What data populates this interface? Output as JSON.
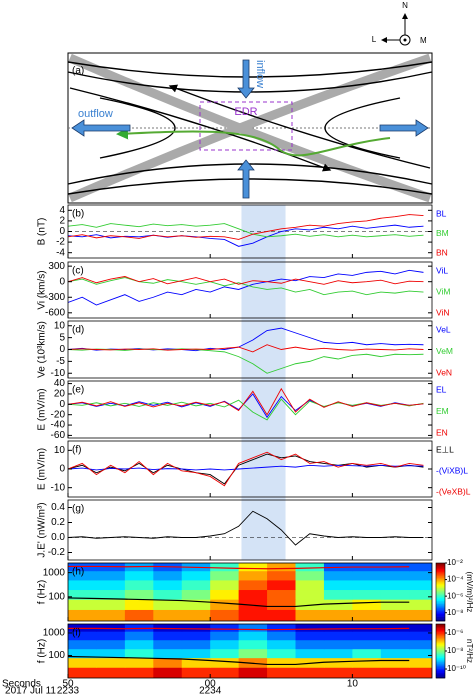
{
  "diagram": {
    "label": "(a)",
    "inflow": "inflow",
    "outflow": "outflow",
    "edr": "EDR",
    "compass": {
      "n": "N",
      "l": "L",
      "m": "M"
    }
  },
  "time_axis": {
    "label": "Seconds",
    "date": "2017 Jul 11",
    "xlim": [
      50,
      75.6
    ],
    "xticks": [
      50,
      {
        "value": 60,
        "label": "00"
      },
      {
        "value": 70,
        "label": "10"
      }
    ],
    "xticks_row2": [
      {
        "value": 50,
        "label": "2233"
      },
      {
        "value": 60,
        "label": "2234"
      }
    ],
    "highlight": [
      62.2,
      65.3
    ]
  },
  "chart_data": [
    {
      "type": "line",
      "panel": "(b)",
      "ylabel": "B (nT)",
      "zero_line": true,
      "x": [
        50,
        51,
        52,
        53,
        54,
        55,
        56,
        57,
        58,
        59,
        60,
        61,
        62,
        63,
        64,
        65,
        66,
        67,
        68,
        69,
        70,
        71,
        72,
        73,
        74,
        75
      ],
      "ylim": [
        -5,
        5
      ],
      "yticks": [
        4,
        2,
        0,
        -2,
        -4
      ],
      "series": [
        {
          "name": "BL",
          "color": "#0000ff",
          "values": [
            -0.8,
            -1,
            -0.6,
            -1.2,
            -0.9,
            -1,
            -0.7,
            -1.1,
            -0.8,
            -1,
            -1.3,
            -1.5,
            -2.8,
            -2.2,
            -1,
            0,
            0.5,
            0.3,
            0.8,
            0.5,
            1,
            0.6,
            0.9,
            1.2,
            0.8,
            1
          ]
        },
        {
          "name": "BM",
          "color": "#33cc33",
          "values": [
            1,
            1.3,
            0.8,
            1.5,
            1.2,
            0.9,
            1.4,
            1.1,
            1.3,
            1,
            1.2,
            1.5,
            0.5,
            -0.5,
            -1,
            -0.8,
            -0.5,
            -0.9,
            -0.6,
            -1,
            -0.7,
            -1,
            -0.8,
            -0.6,
            -0.9,
            -0.7
          ]
        },
        {
          "name": "BN",
          "color": "#ee0000",
          "values": [
            -1,
            -0.6,
            -1.2,
            -0.8,
            -1,
            -1.3,
            -0.7,
            -1,
            -0.8,
            -1.1,
            -0.9,
            -1,
            -1.5,
            -0.5,
            0,
            0.5,
            0.8,
            1.2,
            1,
            1.5,
            1.8,
            2,
            2.5,
            2.8,
            3.2,
            3
          ]
        }
      ]
    },
    {
      "type": "line",
      "panel": "(c)",
      "ylabel": "Vi (km/s)",
      "zero_line": false,
      "x": [
        50,
        51,
        52,
        53,
        54,
        55,
        56,
        57,
        58,
        59,
        60,
        61,
        62,
        63,
        64,
        65,
        66,
        67,
        68,
        69,
        70,
        71,
        72,
        73,
        74,
        75
      ],
      "ylim": [
        -700,
        380
      ],
      "yticks": [
        300,
        0,
        -300,
        -600
      ],
      "series": [
        {
          "name": "ViL",
          "color": "#0000ff",
          "values": [
            -400,
            -300,
            -450,
            -350,
            -250,
            -380,
            -300,
            -200,
            -250,
            -150,
            -200,
            -100,
            -150,
            -50,
            0,
            50,
            20,
            100,
            80,
            150,
            120,
            180,
            200,
            150,
            220,
            180
          ]
        },
        {
          "name": "ViM",
          "color": "#33cc33",
          "values": [
            0,
            50,
            -50,
            20,
            80,
            0,
            -30,
            40,
            0,
            -50,
            0,
            -80,
            -20,
            -100,
            -150,
            -120,
            -200,
            -150,
            -250,
            -200,
            -180,
            -250,
            -200,
            -220,
            -180,
            -200
          ]
        },
        {
          "name": "ViN",
          "color": "#ee0000",
          "values": [
            0,
            80,
            -20,
            50,
            100,
            0,
            60,
            -40,
            20,
            80,
            0,
            50,
            -50,
            20,
            0,
            -30,
            50,
            0,
            -50,
            20,
            -20,
            0,
            30,
            -40,
            10,
            0
          ]
        }
      ]
    },
    {
      "type": "line",
      "panel": "(d)",
      "ylabel": "Ve (10³km/s)",
      "zero_line": false,
      "x": [
        50,
        51,
        52,
        53,
        54,
        55,
        56,
        57,
        58,
        59,
        60,
        61,
        62,
        63,
        64,
        65,
        66,
        67,
        68,
        69,
        70,
        71,
        72,
        73,
        74,
        75
      ],
      "ylim": [
        -12,
        12
      ],
      "yticks": [
        10,
        5,
        0,
        -5,
        -10
      ],
      "series": [
        {
          "name": "VeL",
          "color": "#0000ff",
          "values": [
            0,
            0.5,
            -0.3,
            0.2,
            0,
            0.4,
            -0.2,
            0.3,
            0,
            -0.5,
            0.5,
            0,
            1,
            4,
            8,
            9,
            7,
            5,
            3,
            2.5,
            3,
            2,
            2.5,
            2,
            2.2,
            2
          ]
        },
        {
          "name": "VeM",
          "color": "#33cc33",
          "values": [
            0,
            -0.3,
            0.2,
            0,
            -0.4,
            0.2,
            0,
            -0.2,
            0.3,
            0,
            -0.5,
            -1,
            -3,
            -6,
            -10,
            -8,
            -6,
            -5,
            -3,
            -4,
            -2.5,
            -2,
            -3,
            -2,
            -2.2,
            -2
          ]
        },
        {
          "name": "VeN",
          "color": "#ee0000",
          "values": [
            0,
            0.3,
            0,
            -0.2,
            0.2,
            0,
            0.3,
            -0.3,
            0,
            0.2,
            0,
            0.5,
            1,
            -1,
            2,
            0,
            1,
            0,
            0.5,
            0,
            -0.3,
            0.2,
            0,
            -0.2,
            0.3,
            0
          ]
        }
      ]
    },
    {
      "type": "line",
      "panel": "(e)",
      "ylabel": "E (mV/m)",
      "zero_line": false,
      "x": [
        50,
        51,
        52,
        53,
        54,
        55,
        56,
        57,
        58,
        59,
        60,
        61,
        62,
        63,
        64,
        65,
        66,
        67,
        68,
        69,
        70,
        71,
        72,
        73,
        74,
        75
      ],
      "ylim": [
        -65,
        45
      ],
      "yticks": [
        40,
        20,
        0,
        -20,
        -40,
        -60
      ],
      "series": [
        {
          "name": "EL",
          "color": "#0000ff",
          "values": [
            0,
            3,
            -4,
            2,
            -3,
            5,
            -2,
            4,
            -5,
            3,
            -4,
            6,
            -10,
            20,
            -25,
            15,
            -12,
            8,
            -5,
            4,
            -3,
            2,
            -4,
            3,
            -2,
            1
          ]
        },
        {
          "name": "EM",
          "color": "#33cc33",
          "values": [
            0,
            -2,
            3,
            -3,
            2,
            -4,
            3,
            -2,
            4,
            -3,
            2,
            -5,
            8,
            -15,
            -30,
            10,
            -20,
            6,
            -4,
            3,
            -2,
            3,
            -2,
            2,
            -3,
            2
          ]
        },
        {
          "name": "EN",
          "color": "#ee0000",
          "values": [
            0,
            4,
            -3,
            5,
            -4,
            3,
            -5,
            2,
            -3,
            4,
            -2,
            5,
            -12,
            25,
            -20,
            30,
            -15,
            10,
            -6,
            5,
            -4,
            3,
            -3,
            2,
            -2,
            1
          ]
        }
      ]
    },
    {
      "type": "line",
      "panel": "(f)",
      "ylabel": "E (mV/m)",
      "zero_line": false,
      "x": [
        50,
        51,
        52,
        53,
        54,
        55,
        56,
        57,
        58,
        59,
        60,
        61,
        62,
        63,
        64,
        65,
        66,
        67,
        68,
        69,
        70,
        71,
        72,
        73,
        74,
        75
      ],
      "ylim": [
        -15,
        15
      ],
      "yticks": [
        10,
        0,
        -10
      ],
      "series": [
        {
          "name": "E⊥L",
          "color": "#000000",
          "values": [
            0,
            2,
            -2,
            1,
            -1,
            3,
            -2,
            2,
            0,
            -2,
            -3,
            -8,
            2,
            5,
            8,
            6,
            7,
            4,
            3,
            2,
            3,
            1,
            2,
            1,
            2,
            1
          ]
        },
        {
          "name": "-(ViXB)L",
          "color": "#0000ff",
          "values": [
            0,
            0.5,
            -0.5,
            0.3,
            0,
            0.5,
            -0.3,
            0.2,
            0,
            -0.5,
            0,
            -0.5,
            0,
            0.5,
            1,
            1.5,
            1,
            2,
            1.5,
            2,
            1.8,
            1.5,
            2,
            1.5,
            1.8,
            1.5
          ]
        },
        {
          "name": "-(VeXB)L",
          "color": "#ee0000",
          "values": [
            0,
            3,
            -3,
            2,
            -2,
            4,
            -3,
            3,
            -1,
            -2,
            -4,
            -9,
            3,
            6,
            9,
            5,
            8,
            3,
            4,
            1,
            3,
            2,
            3,
            1,
            3,
            2
          ]
        }
      ]
    },
    {
      "type": "line",
      "panel": "(g)",
      "ylabel": "J.E' (nW/m³)",
      "zero_line": true,
      "x": [
        50,
        51,
        52,
        53,
        54,
        55,
        56,
        57,
        58,
        59,
        60,
        61,
        62,
        63,
        64,
        65,
        66,
        67,
        68,
        69,
        70,
        71,
        72,
        73,
        74,
        75
      ],
      "ylim": [
        -0.3,
        0.5
      ],
      "yticks": [
        0.4,
        0.2,
        {
          "value": 0,
          "label": "0.0"
        },
        -0.2
      ],
      "series": [
        {
          "color": "#000000",
          "values": [
            0,
            0.01,
            -0.01,
            0,
            0.01,
            0,
            -0.01,
            0.01,
            0,
            0,
            0.02,
            0.05,
            0.15,
            0.35,
            0.25,
            0.1,
            -0.1,
            0.05,
            0.02,
            0,
            0.01,
            0,
            0,
            0.01,
            0,
            0
          ]
        }
      ]
    },
    {
      "type": "heatmap",
      "panel": "(h)",
      "ylabel": "f (Hz)",
      "ylog": true,
      "x_bins": [
        50,
        52,
        54,
        56,
        58,
        60,
        62,
        64,
        66,
        68,
        70,
        72,
        74,
        76
      ],
      "y_bins": [
        10,
        30,
        80,
        200,
        500,
        1200,
        2500
      ],
      "ylim": [
        10,
        2500
      ],
      "yticks": [
        1000,
        100
      ],
      "z": [
        [
          0.0001,
          0.0001,
          0.0003,
          0.0001,
          0.0001,
          0.0003,
          0.001,
          0.001,
          0.0001,
          0.0001,
          0.0001,
          0.0001,
          0.0001
        ],
        [
          1e-05,
          1e-05,
          3e-05,
          1e-05,
          1e-05,
          0.0001,
          0.001,
          0.0003,
          1e-05,
          1e-05,
          3e-05,
          1e-05,
          1e-05
        ],
        [
          1e-06,
          1e-06,
          3e-06,
          1e-06,
          3e-06,
          3e-05,
          0.001,
          0.0003,
          1e-05,
          1e-06,
          1e-06,
          1e-06,
          1e-06
        ],
        [
          3e-07,
          3e-07,
          1e-06,
          3e-07,
          1e-06,
          1e-05,
          0.0003,
          0.001,
          1e-05,
          3e-07,
          3e-07,
          3e-07,
          3e-07
        ],
        [
          1e-07,
          1e-07,
          3e-07,
          1e-07,
          3e-07,
          3e-06,
          0.0001,
          0.0003,
          3e-06,
          1e-07,
          1e-07,
          1e-07,
          1e-07
        ],
        [
          3e-08,
          3e-08,
          1e-07,
          3e-08,
          1e-07,
          1e-06,
          3e-05,
          0.0001,
          1e-06,
          3e-08,
          3e-08,
          3e-08,
          3e-08
        ]
      ],
      "zlim": [
        1e-09,
        0.01
      ],
      "zlabel": "(mV/m)²/Hz",
      "zticks": [
        {
          "value": 0.01,
          "label": "10⁻²"
        },
        {
          "value": 0.0001,
          "label": "10⁻⁴"
        },
        {
          "value": 1e-06,
          "label": "10⁻⁶"
        },
        {
          "value": 1e-08,
          "label": "10⁻⁸"
        }
      ],
      "line_x": [
        50,
        52,
        54,
        56,
        58,
        60,
        62,
        64,
        66,
        68,
        70,
        72,
        74
      ],
      "lines": [
        {
          "color": "#ee0000",
          "values": [
            1800,
            1800,
            1750,
            1800,
            1700,
            1600,
            1500,
            1450,
            1500,
            1600,
            1700,
            1700,
            1750
          ]
        },
        {
          "color": "#000000",
          "values": [
            90,
            85,
            80,
            75,
            70,
            60,
            50,
            40,
            40,
            50,
            55,
            60,
            60
          ]
        }
      ]
    },
    {
      "type": "heatmap",
      "panel": "(i)",
      "ylabel": "f (Hz)",
      "ylog": true,
      "x_bins": [
        50,
        52,
        54,
        56,
        58,
        60,
        62,
        64,
        66,
        68,
        70,
        72,
        74,
        76
      ],
      "y_bins": [
        10,
        30,
        80,
        200,
        500,
        1200,
        2500
      ],
      "ylim": [
        10,
        2500
      ],
      "yticks": [
        1000,
        100
      ],
      "z": [
        [
          1e-06,
          1e-06,
          1e-06,
          3e-06,
          1e-06,
          1e-06,
          3e-06,
          1e-06,
          1e-06,
          1e-06,
          1e-06,
          1e-06,
          1e-06
        ],
        [
          1e-07,
          1e-07,
          1e-07,
          3e-07,
          1e-07,
          1e-07,
          3e-07,
          1e-07,
          1e-07,
          1e-07,
          1e-07,
          1e-07,
          1e-07
        ],
        [
          1e-09,
          1e-09,
          3e-09,
          1e-09,
          1e-09,
          3e-09,
          1e-08,
          3e-09,
          1e-09,
          1e-09,
          3e-09,
          1e-09,
          1e-09
        ],
        [
          3e-10,
          3e-10,
          1e-09,
          3e-10,
          3e-10,
          1e-09,
          3e-09,
          1e-09,
          3e-10,
          3e-10,
          3e-10,
          3e-10,
          3e-10
        ],
        [
          1e-10,
          1e-10,
          3e-10,
          1e-10,
          1e-10,
          3e-10,
          1e-09,
          3e-10,
          1e-10,
          1e-10,
          1e-10,
          1e-10,
          1e-10
        ],
        [
          3e-11,
          3e-11,
          1e-10,
          3e-11,
          3e-11,
          1e-10,
          3e-10,
          1e-10,
          3e-11,
          3e-11,
          3e-11,
          3e-11,
          3e-11
        ]
      ],
      "zlim": [
        1e-11,
        1e-05
      ],
      "zlabel": "nT²/Hz",
      "zticks": [
        {
          "value": 1e-06,
          "label": "10⁻⁶"
        },
        {
          "value": 1e-08,
          "label": "10⁻⁸"
        },
        {
          "value": 1e-10,
          "label": "10⁻¹⁰"
        }
      ],
      "line_x": [
        50,
        52,
        54,
        56,
        58,
        60,
        62,
        64,
        66,
        68,
        70,
        72,
        74
      ],
      "lines": [
        {
          "color": "#ee0000",
          "values": [
            1600,
            1600,
            1550,
            1600,
            1550,
            1500,
            1450,
            1400,
            1450,
            1500,
            1550,
            1550,
            1600
          ]
        },
        {
          "color": "#000000",
          "values": [
            90,
            85,
            80,
            75,
            70,
            60,
            50,
            40,
            40,
            50,
            55,
            60,
            60
          ]
        }
      ]
    }
  ]
}
